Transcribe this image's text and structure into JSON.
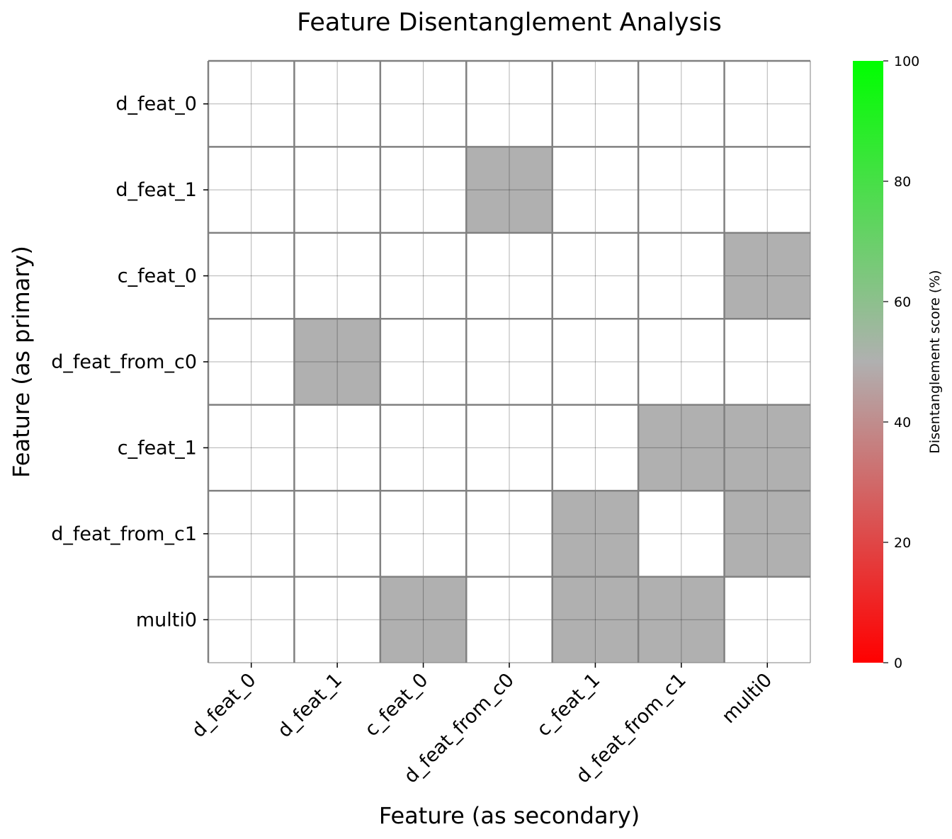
{
  "chart_data": {
    "type": "heatmap",
    "title": "Feature Disentanglement Analysis",
    "xlabel": "Feature (as secondary)",
    "ylabel": "Feature (as primary)",
    "x_categories": [
      "d_feat_0",
      "d_feat_1",
      "c_feat_0",
      "d_feat_from_c0",
      "c_feat_1",
      "d_feat_from_c1",
      "multi0"
    ],
    "y_categories": [
      "d_feat_0",
      "d_feat_1",
      "c_feat_0",
      "d_feat_from_c0",
      "c_feat_1",
      "d_feat_from_c1",
      "multi0"
    ],
    "values": [
      [
        null,
        null,
        null,
        null,
        null,
        null,
        null
      ],
      [
        null,
        null,
        null,
        50,
        null,
        null,
        null
      ],
      [
        null,
        null,
        null,
        null,
        null,
        null,
        50
      ],
      [
        null,
        50,
        null,
        null,
        null,
        null,
        null
      ],
      [
        null,
        null,
        null,
        null,
        null,
        50,
        50
      ],
      [
        null,
        null,
        null,
        null,
        50,
        null,
        50
      ],
      [
        null,
        null,
        50,
        null,
        50,
        50,
        null
      ]
    ],
    "colorbar": {
      "label": "Disentanglement score (%)",
      "range": [
        0,
        100
      ],
      "ticks": [
        "0",
        "20",
        "40",
        "60",
        "80",
        "100"
      ],
      "colors": [
        "#ff0000",
        "#b0b0b0",
        "#00ff00"
      ]
    },
    "grid": true
  }
}
